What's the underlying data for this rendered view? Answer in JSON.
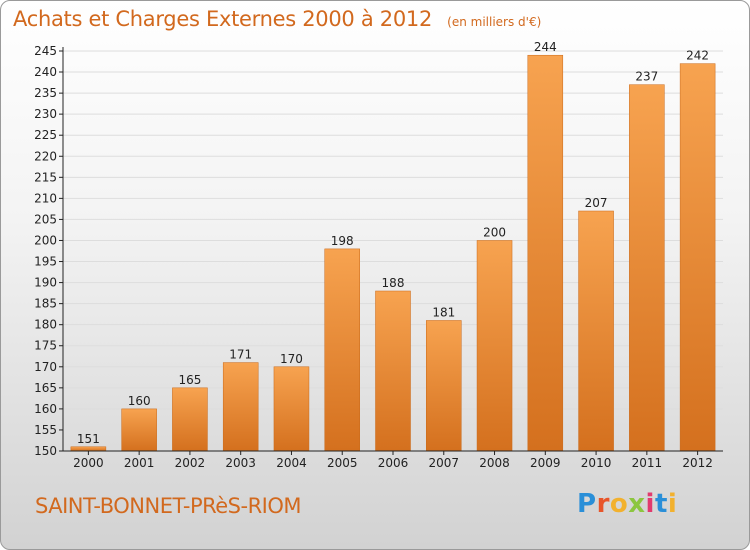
{
  "title": {
    "main": "Achats et Charges Externes 2000 à 2012",
    "unit": "(en milliers d'€)"
  },
  "town": "SAINT-BONNET-PRèS-RIOM",
  "logo": {
    "letters": [
      "P",
      "r",
      "o",
      "x",
      "i",
      "t",
      "i"
    ],
    "colors": [
      "#2a8fd8",
      "#e8552a",
      "#f2b12e",
      "#8cc63f",
      "#e23a6e",
      "#2a8fd8",
      "#f2b12e"
    ]
  },
  "colors": {
    "bar_top": "#f7a350",
    "bar_bottom": "#d4701e",
    "axis": "#222222",
    "grid": "#dddddd",
    "text": "#222222"
  },
  "chart_data": {
    "type": "bar",
    "categories": [
      "2000",
      "2001",
      "2002",
      "2003",
      "2004",
      "2005",
      "2006",
      "2007",
      "2008",
      "2009",
      "2010",
      "2011",
      "2012"
    ],
    "values": [
      151,
      160,
      165,
      171,
      170,
      198,
      188,
      181,
      200,
      244,
      207,
      237,
      242
    ],
    "title": "Achats et Charges Externes 2000 à 2012",
    "ylim": [
      150,
      245
    ],
    "yticks": [
      150,
      155,
      160,
      165,
      170,
      175,
      180,
      185,
      190,
      195,
      200,
      205,
      210,
      215,
      220,
      225,
      230,
      235,
      240,
      245
    ],
    "grid": true
  }
}
